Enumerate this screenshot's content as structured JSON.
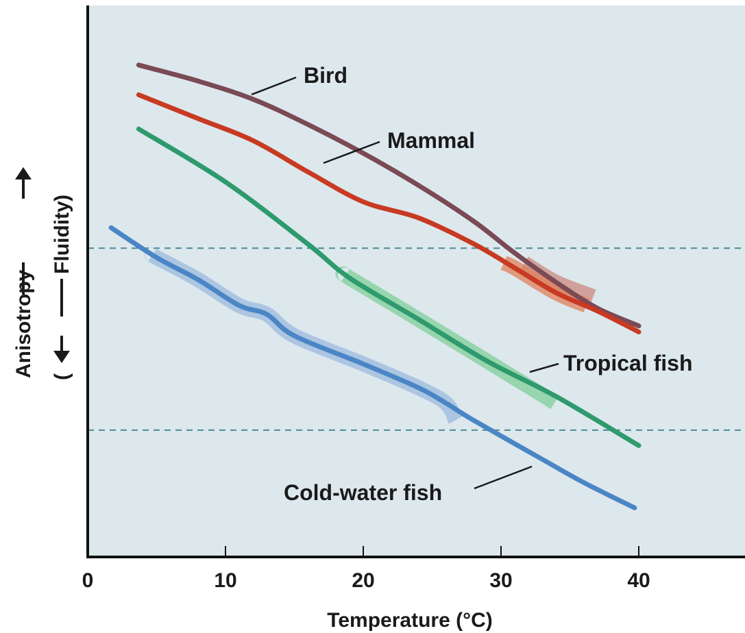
{
  "chart_data": {
    "type": "line",
    "xlabel": "Temperature (°C)",
    "ylabel": "Anisotropy —— (—— Fluidity)",
    "ylabel_parts": {
      "top": "Anisotropy",
      "bottom": "Fluidity"
    },
    "xlim": [
      0,
      48
    ],
    "ylim": [
      0,
      100
    ],
    "xticks": [
      0,
      10,
      20,
      30,
      40
    ],
    "xtick_labels": [
      "0",
      "10",
      "20",
      "30",
      "40"
    ],
    "grid": false,
    "reference_lines": [
      56,
      23
    ],
    "colors": {
      "background": "#dde8ed",
      "axis": "#111111",
      "reference": "#4a8a96"
    },
    "series": [
      {
        "name": "Bird",
        "color": "#7a4a55",
        "band_color": "#c98a7e",
        "points": [
          [
            3.7,
            89.2
          ],
          [
            8,
            86.3
          ],
          [
            12,
            83.0
          ],
          [
            16,
            78.4
          ],
          [
            20,
            73.2
          ],
          [
            24,
            67.4
          ],
          [
            28,
            60.9
          ],
          [
            31,
            55.1
          ],
          [
            34,
            49.8
          ],
          [
            37,
            45.1
          ],
          [
            40,
            41.9
          ]
        ],
        "band": [
          [
            31.7,
            53.3
          ],
          [
            36.7,
            47.2
          ]
        ]
      },
      {
        "name": "Mammal",
        "color": "#c83a22",
        "band_color": "#e0805a",
        "points": [
          [
            3.7,
            83.8
          ],
          [
            8,
            79.5
          ],
          [
            12,
            75.5
          ],
          [
            16,
            69.8
          ],
          [
            20,
            64.4
          ],
          [
            24,
            61.5
          ],
          [
            28,
            56.8
          ],
          [
            31,
            52.4
          ],
          [
            34,
            47.9
          ],
          [
            37,
            44.6
          ],
          [
            40,
            40.8
          ]
        ],
        "band": [
          [
            30.2,
            53.3
          ],
          [
            36.2,
            45.6
          ]
        ]
      },
      {
        "name": "Tropical fish",
        "color": "#2e9a6e",
        "band_color": "#7fcf98",
        "points": [
          [
            3.7,
            77.6
          ],
          [
            10,
            68.0
          ],
          [
            16,
            56.7
          ],
          [
            19,
            50.6
          ],
          [
            24,
            43.1
          ],
          [
            29,
            35.5
          ],
          [
            34,
            29.1
          ],
          [
            40,
            20.2
          ]
        ],
        "band": [
          [
            18.7,
            51.1
          ],
          [
            33.9,
            28.0
          ]
        ]
      },
      {
        "name": "Cold-water fish",
        "color": "#4a86c5",
        "band_color": "#9bb9de",
        "points": [
          [
            1.7,
            59.7
          ],
          [
            5,
            54.3
          ],
          [
            8,
            50.3
          ],
          [
            11,
            45.6
          ],
          [
            13,
            44.0
          ],
          [
            15,
            40.1
          ],
          [
            20,
            35.0
          ],
          [
            24,
            30.7
          ],
          [
            26,
            27.9
          ],
          [
            28,
            24.8
          ],
          [
            33,
            17.7
          ],
          [
            36,
            13.5
          ],
          [
            39.7,
            8.9
          ]
        ],
        "band": [
          [
            4.7,
            54.8
          ],
          [
            26.7,
            24.8
          ]
        ]
      }
    ],
    "annotations": [
      {
        "text": "Bird",
        "series": "Bird"
      },
      {
        "text": "Mammal",
        "series": "Mammal"
      },
      {
        "text": "Tropical fish",
        "series": "Tropical fish"
      },
      {
        "text": "Cold-water fish",
        "series": "Cold-water fish"
      }
    ]
  }
}
